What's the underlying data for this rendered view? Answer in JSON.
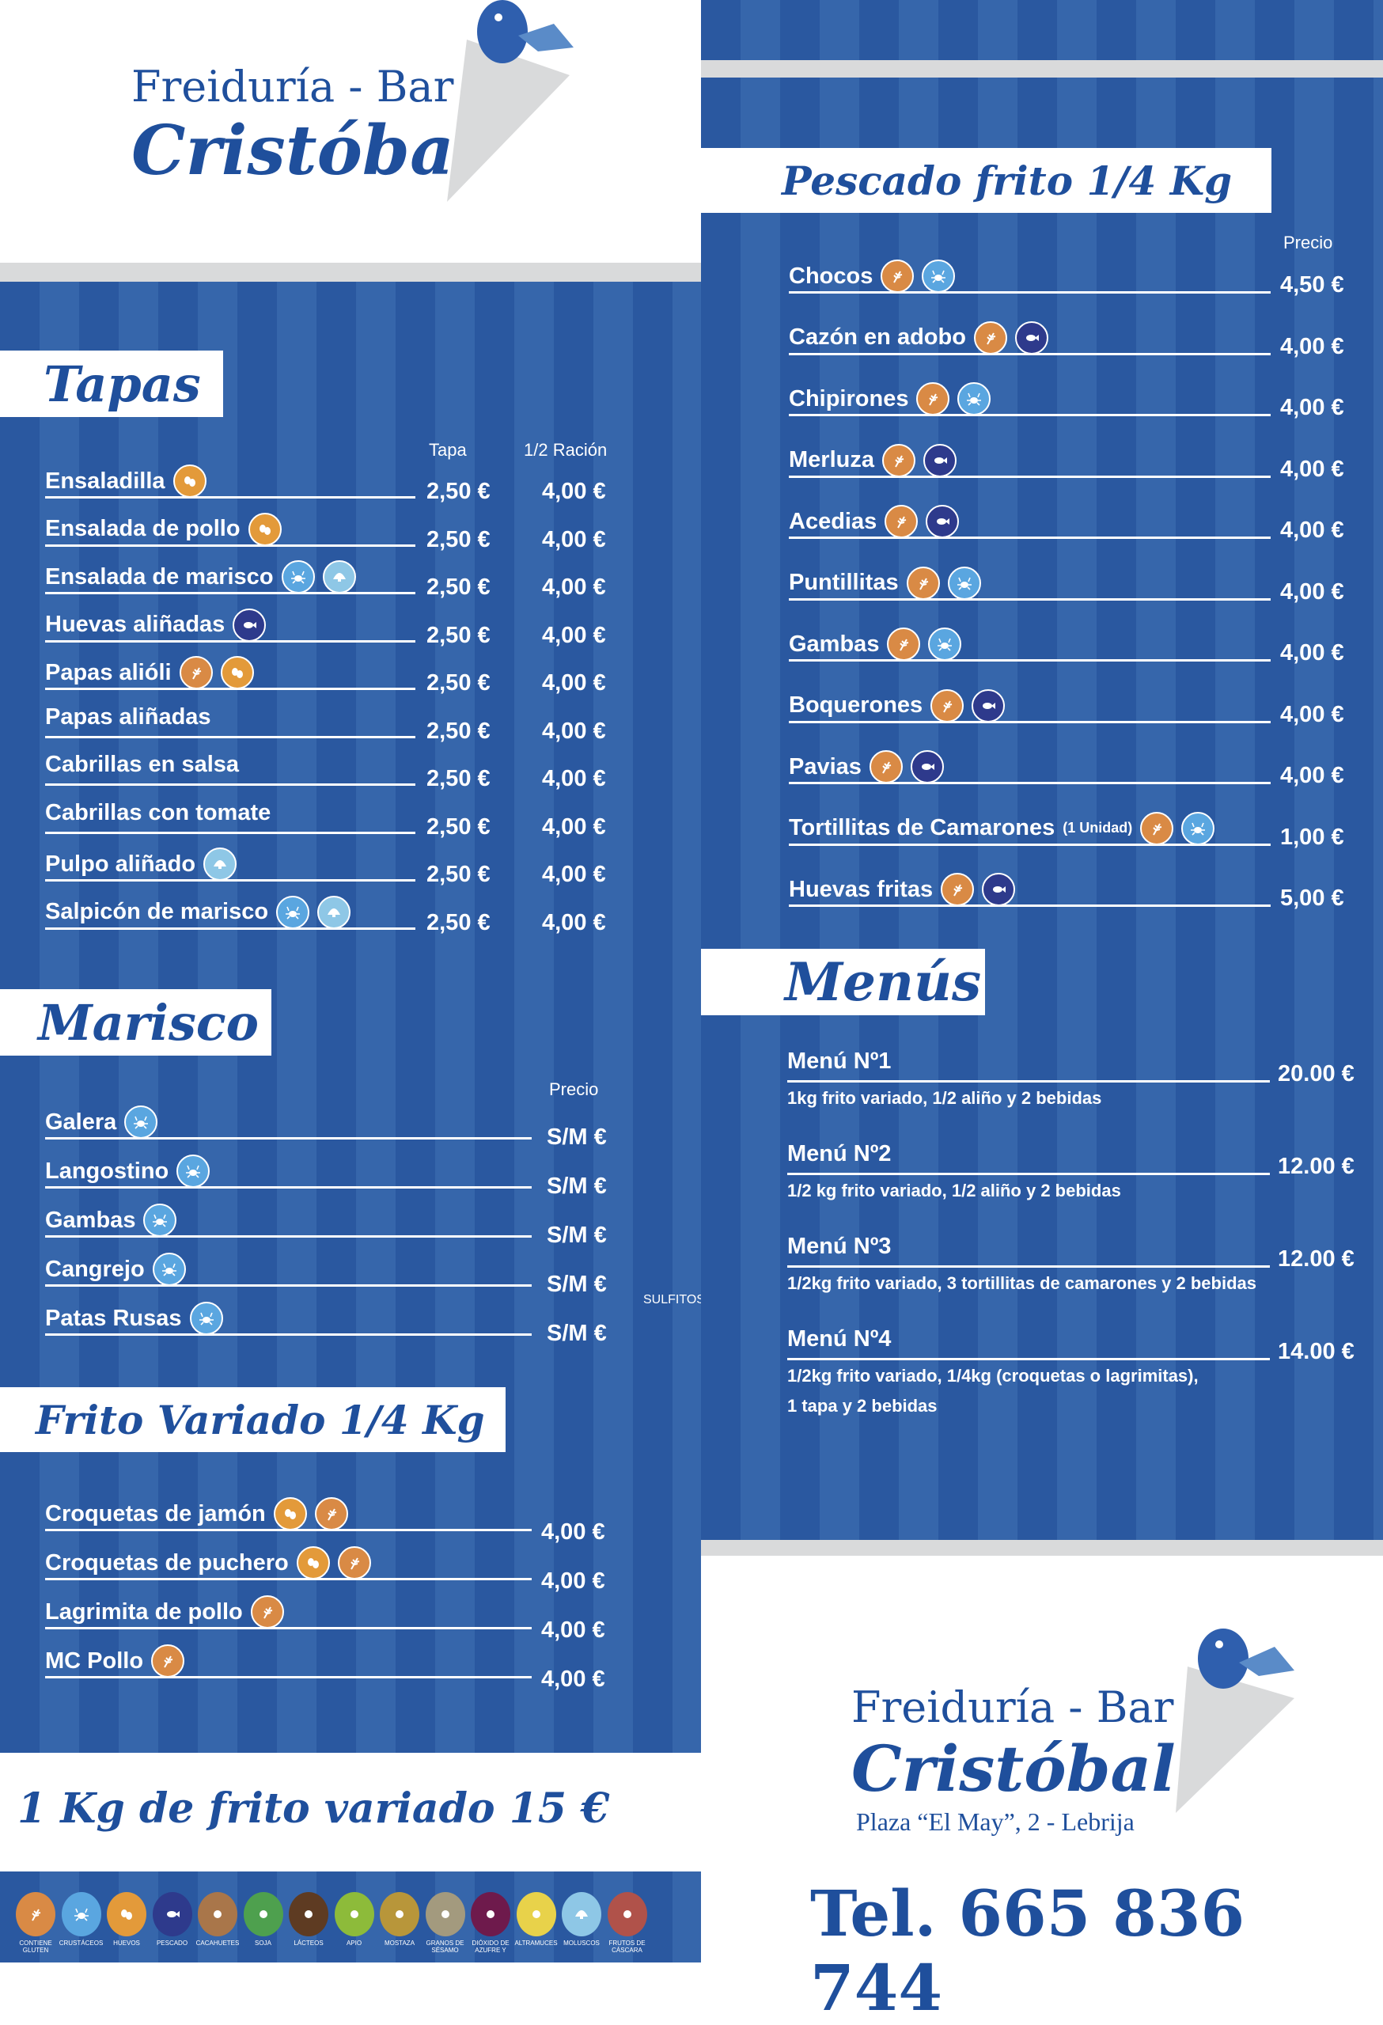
{
  "brand": {
    "line1": "Freiduría - Bar",
    "line2": "Cristóbal",
    "address": "Plaza “El May”, 2 - Lebrija",
    "phone": "Tel. 665 836 744"
  },
  "colors": {
    "blue": "#2a58a0",
    "title": "#1f4f9c",
    "gluten": "#d98a45",
    "crustaceos": "#5aa6e0",
    "huevos": "#e39a3a",
    "pescado": "#2e3a8c",
    "moluscos": "#8ec7e6"
  },
  "tapas": {
    "title": "Tapas",
    "col1": "Tapa",
    "col2": "1/2 Ración",
    "items": [
      {
        "name": "Ensaladilla",
        "icons": [
          "huevos"
        ],
        "p1": "2,50 €",
        "p2": "4,00 €"
      },
      {
        "name": "Ensalada de pollo",
        "icons": [
          "huevos"
        ],
        "p1": "2,50 €",
        "p2": "4,00 €"
      },
      {
        "name": "Ensalada de marisco",
        "icons": [
          "crustaceos",
          "moluscos"
        ],
        "p1": "2,50 €",
        "p2": "4,00 €"
      },
      {
        "name": "Huevas aliñadas",
        "icons": [
          "pescado"
        ],
        "p1": "2,50 €",
        "p2": "4,00 €"
      },
      {
        "name": "Papas alióli",
        "icons": [
          "gluten",
          "huevos"
        ],
        "p1": "2,50 €",
        "p2": "4,00 €"
      },
      {
        "name": "Papas aliñadas",
        "icons": [],
        "p1": "2,50 €",
        "p2": "4,00 €"
      },
      {
        "name": "Cabrillas en salsa",
        "icons": [],
        "p1": "2,50 €",
        "p2": "4,00 €"
      },
      {
        "name": "Cabrillas con tomate",
        "icons": [],
        "p1": "2,50 €",
        "p2": "4,00 €"
      },
      {
        "name": "Pulpo aliñado",
        "icons": [
          "moluscos"
        ],
        "p1": "2,50 €",
        "p2": "4,00 €"
      },
      {
        "name": "Salpicón de marisco",
        "icons": [
          "crustaceos",
          "moluscos"
        ],
        "p1": "2,50 €",
        "p2": "4,00 €"
      }
    ]
  },
  "marisco": {
    "title": "Marisco",
    "col": "Precio",
    "items": [
      {
        "name": "Galera",
        "icons": [
          "crustaceos"
        ],
        "p1": "S/M €"
      },
      {
        "name": "Langostino",
        "icons": [
          "crustaceos"
        ],
        "p1": "S/M €"
      },
      {
        "name": "Gambas",
        "icons": [
          "crustaceos"
        ],
        "p1": "S/M €"
      },
      {
        "name": "Cangrejo",
        "icons": [
          "crustaceos"
        ],
        "p1": "S/M €"
      },
      {
        "name": "Patas Rusas",
        "icons": [
          "crustaceos"
        ],
        "p1": "S/M €"
      }
    ]
  },
  "sulfitos": "SULFITOS",
  "frito": {
    "title": "Frito Variado 1/4 Kg",
    "items": [
      {
        "name": "Croquetas de jamón",
        "icons": [
          "huevos",
          "gluten"
        ],
        "p1": "4,00 €"
      },
      {
        "name": "Croquetas de puchero",
        "icons": [
          "huevos",
          "gluten"
        ],
        "p1": "4,00 €"
      },
      {
        "name": "Lagrimita de pollo",
        "icons": [
          "gluten"
        ],
        "p1": "4,00 €"
      },
      {
        "name": "MC Pollo",
        "icons": [
          "gluten"
        ],
        "p1": "4,00 €"
      }
    ]
  },
  "banner": "1 Kg de frito variado 15 €",
  "pescado": {
    "title": "Pescado frito 1/4 Kg",
    "col": "Precio",
    "items": [
      {
        "name": "Chocos",
        "icons": [
          "gluten",
          "crustaceos"
        ],
        "p1": "4,50 €"
      },
      {
        "name": "Cazón en adobo",
        "icons": [
          "gluten",
          "pescado"
        ],
        "p1": "4,00 €"
      },
      {
        "name": "Chipirones",
        "icons": [
          "gluten",
          "crustaceos"
        ],
        "p1": "4,00 €"
      },
      {
        "name": "Merluza",
        "icons": [
          "gluten",
          "pescado"
        ],
        "p1": "4,00 €"
      },
      {
        "name": "Acedias",
        "icons": [
          "gluten",
          "pescado"
        ],
        "p1": "4,00 €"
      },
      {
        "name": "Puntillitas",
        "icons": [
          "gluten",
          "crustaceos"
        ],
        "p1": "4,00 €"
      },
      {
        "name": "Gambas",
        "icons": [
          "gluten",
          "crustaceos"
        ],
        "p1": "4,00 €"
      },
      {
        "name": "Boquerones",
        "icons": [
          "gluten",
          "pescado"
        ],
        "p1": "4,00 €"
      },
      {
        "name": "Pavias",
        "icons": [
          "gluten",
          "pescado"
        ],
        "p1": "4,00 €"
      },
      {
        "name": "Tortillitas de Camarones",
        "note": "(1 Unidad)",
        "icons": [
          "gluten",
          "crustaceos"
        ],
        "p1": "1,00 €"
      },
      {
        "name": "Huevas fritas",
        "icons": [
          "gluten",
          "pescado"
        ],
        "p1": "5,00 €"
      }
    ]
  },
  "menus": {
    "title": "Menús",
    "items": [
      {
        "name": "Menú Nº1",
        "desc": [
          "1kg frito variado, 1/2 aliño y 2 bebidas"
        ],
        "p1": "20.00 €"
      },
      {
        "name": "Menú Nº2",
        "desc": [
          "1/2 kg frito variado, 1/2 aliño y 2 bebidas"
        ],
        "p1": "12.00 €"
      },
      {
        "name": "Menú Nº3",
        "desc": [
          "1/2kg frito variado, 3 tortillitas de camarones y 2 bebidas"
        ],
        "p1": "12.00 €"
      },
      {
        "name": "Menú Nº4",
        "desc": [
          "1/2kg frito variado, 1/4kg (croquetas o lagrimitas),",
          "1 tapa y 2 bebidas"
        ],
        "p1": "14.00 €"
      }
    ]
  },
  "allergens": [
    {
      "key": "gluten",
      "label": "CONTIENE GLUTEN",
      "color": "#d98a45"
    },
    {
      "key": "crustaceos",
      "label": "CRUSTÁCEOS",
      "color": "#5aa6e0"
    },
    {
      "key": "huevos",
      "label": "HUEVOS",
      "color": "#e39a3a"
    },
    {
      "key": "pescado",
      "label": "PESCADO",
      "color": "#2e3a8c"
    },
    {
      "key": "cacahuetes",
      "label": "CACAHUETES",
      "color": "#a9764a"
    },
    {
      "key": "soja",
      "label": "SOJA",
      "color": "#4ea04e"
    },
    {
      "key": "lacteos",
      "label": "LÁCTEOS",
      "color": "#5e3b22"
    },
    {
      "key": "apio",
      "label": "APIO",
      "color": "#8dbb3a"
    },
    {
      "key": "mostaza",
      "label": "MOSTAZA",
      "color": "#b8963a"
    },
    {
      "key": "sesamo",
      "label": "GRANOS DE SÉSAMO",
      "color": "#a39a7e"
    },
    {
      "key": "sulfitos",
      "label": "DIÓXIDO DE AZUFRE Y",
      "color": "#6e1a4c"
    },
    {
      "key": "altramuces",
      "label": "ALTRAMUCES",
      "color": "#e8d24a"
    },
    {
      "key": "moluscos",
      "label": "MOLUSCOS",
      "color": "#8ec7e6"
    },
    {
      "key": "frutos",
      "label": "FRUTOS DE CÁSCARA",
      "color": "#b0524a"
    }
  ]
}
